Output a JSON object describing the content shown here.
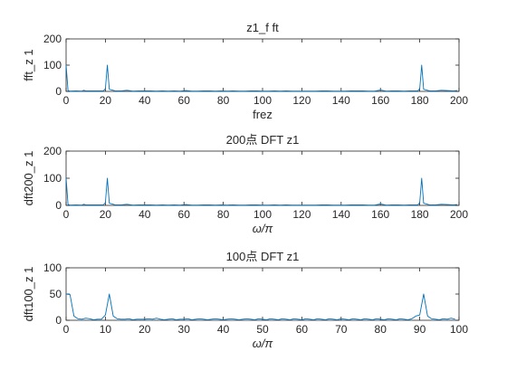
{
  "chart_data": [
    {
      "type": "line",
      "title": "z1_f ft",
      "xlabel": "frez",
      "ylabel": "fft_z 1",
      "xlim": [
        0,
        200
      ],
      "ylim": [
        0,
        200
      ],
      "xticks": [
        "0",
        "20",
        "40",
        "60",
        "80",
        "100",
        "120",
        "140",
        "160",
        "180",
        "200"
      ],
      "yticks": [
        "0",
        "100",
        "200"
      ],
      "series": [
        {
          "color": "#0072BD",
          "x": [
            0,
            1,
            2,
            5,
            8,
            9,
            10,
            13,
            16,
            19,
            20,
            21,
            22,
            25,
            28,
            31,
            34,
            37,
            40,
            43,
            46,
            49,
            52,
            55,
            58,
            61,
            64,
            67,
            70,
            73,
            76,
            79,
            82,
            85,
            88,
            91,
            94,
            97,
            100,
            103,
            106,
            109,
            112,
            115,
            118,
            121,
            124,
            127,
            130,
            133,
            136,
            139,
            142,
            145,
            148,
            151,
            154,
            157,
            160,
            163,
            166,
            169,
            172,
            175,
            178,
            179,
            180,
            181,
            182,
            185,
            188,
            191,
            194,
            197,
            199
          ],
          "y": [
            100,
            3,
            1,
            2,
            1,
            4,
            2,
            2,
            2,
            2,
            10,
            100,
            8,
            2,
            2,
            4,
            1,
            2,
            2,
            2,
            1,
            2,
            1,
            2,
            1,
            3,
            1,
            1,
            2,
            2,
            1,
            2,
            1,
            2,
            1,
            1,
            2,
            2,
            1,
            1,
            2,
            1,
            2,
            1,
            1,
            1,
            1,
            1,
            2,
            2,
            1,
            1,
            1,
            2,
            2,
            2,
            1,
            1,
            5,
            1,
            2,
            2,
            1,
            2,
            2,
            2,
            10,
            100,
            8,
            2,
            2,
            4,
            3,
            2,
            3
          ]
        }
      ]
    },
    {
      "type": "line",
      "title": "200点 DFT z1",
      "xlabel": "ω/π",
      "ylabel": "dft200_z 1",
      "xlim": [
        0,
        200
      ],
      "ylim": [
        0,
        200
      ],
      "xticks": [
        "0",
        "20",
        "40",
        "60",
        "80",
        "100",
        "120",
        "140",
        "160",
        "180",
        "200"
      ],
      "yticks": [
        "0",
        "100",
        "200"
      ],
      "series": [
        {
          "color": "#0072BD",
          "x": [
            0,
            1,
            2,
            5,
            8,
            9,
            10,
            13,
            16,
            19,
            20,
            21,
            22,
            25,
            28,
            31,
            34,
            37,
            40,
            43,
            46,
            49,
            52,
            55,
            58,
            61,
            64,
            67,
            70,
            73,
            76,
            79,
            82,
            85,
            88,
            91,
            94,
            97,
            100,
            103,
            106,
            109,
            112,
            115,
            118,
            121,
            124,
            127,
            130,
            133,
            136,
            139,
            142,
            145,
            148,
            151,
            154,
            157,
            160,
            163,
            166,
            169,
            172,
            175,
            178,
            179,
            180,
            181,
            182,
            185,
            188,
            191,
            194,
            197,
            199
          ],
          "y": [
            100,
            3,
            1,
            2,
            1,
            4,
            2,
            2,
            2,
            2,
            10,
            100,
            8,
            2,
            2,
            4,
            1,
            2,
            2,
            2,
            1,
            2,
            1,
            2,
            1,
            3,
            1,
            1,
            2,
            2,
            1,
            2,
            1,
            2,
            1,
            1,
            2,
            2,
            1,
            1,
            2,
            1,
            2,
            1,
            1,
            1,
            1,
            1,
            2,
            2,
            1,
            1,
            1,
            2,
            2,
            2,
            1,
            1,
            5,
            1,
            2,
            2,
            1,
            2,
            2,
            2,
            10,
            100,
            8,
            2,
            2,
            4,
            3,
            2,
            3
          ]
        }
      ]
    },
    {
      "type": "line",
      "title": "100点 DFT z1",
      "xlabel": "ω/π",
      "ylabel": "dft100_z 1",
      "xlim": [
        0,
        100
      ],
      "ylim": [
        0,
        100
      ],
      "xticks": [
        "0",
        "10",
        "20",
        "30",
        "40",
        "50",
        "60",
        "70",
        "80",
        "90",
        "100"
      ],
      "yticks": [
        "0",
        "50",
        "100"
      ],
      "series": [
        {
          "color": "#0072BD",
          "x": [
            0,
            1,
            2,
            3,
            4,
            5,
            6,
            7,
            8,
            9,
            10,
            11,
            12,
            13,
            14,
            15,
            16,
            17,
            18,
            19,
            20,
            21,
            22,
            23,
            24,
            25,
            26,
            27,
            28,
            29,
            30,
            31,
            32,
            33,
            34,
            35,
            36,
            37,
            38,
            39,
            40,
            41,
            42,
            43,
            44,
            45,
            46,
            47,
            48,
            49,
            50,
            51,
            52,
            53,
            54,
            55,
            56,
            57,
            58,
            59,
            60,
            61,
            62,
            63,
            64,
            65,
            66,
            67,
            68,
            69,
            70,
            71,
            72,
            73,
            74,
            75,
            76,
            77,
            78,
            79,
            80,
            81,
            82,
            83,
            84,
            85,
            86,
            87,
            88,
            89,
            90,
            91,
            92,
            93,
            94,
            95,
            96,
            97,
            98,
            99
          ],
          "y": [
            50,
            49,
            8,
            3,
            2,
            4,
            3,
            1,
            2,
            2,
            10,
            50,
            8,
            3,
            2,
            2,
            3,
            1,
            2,
            2,
            2,
            3,
            2,
            4,
            2,
            1,
            2,
            3,
            1,
            2,
            2,
            3,
            1,
            2,
            3,
            2,
            1,
            2,
            3,
            2,
            1,
            2,
            3,
            2,
            1,
            2,
            3,
            2,
            1,
            3,
            2,
            1,
            3,
            2,
            1,
            3,
            2,
            1,
            3,
            2,
            1,
            3,
            2,
            1,
            3,
            2,
            1,
            3,
            2,
            1,
            3,
            2,
            1,
            3,
            2,
            1,
            3,
            2,
            1,
            3,
            2,
            1,
            3,
            2,
            1,
            3,
            2,
            1,
            3,
            8,
            10,
            50,
            8,
            3,
            2,
            1,
            3,
            2,
            4,
            2
          ]
        }
      ]
    }
  ]
}
